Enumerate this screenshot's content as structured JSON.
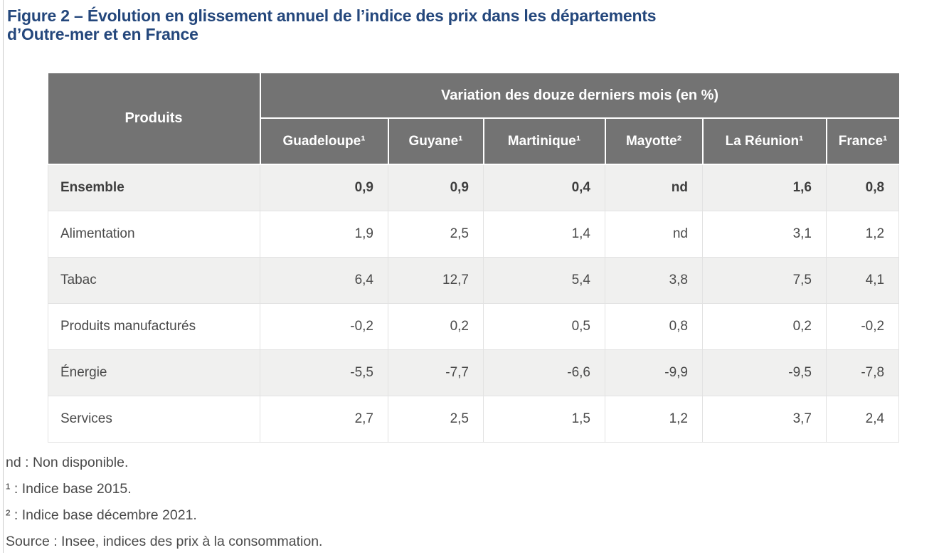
{
  "title": {
    "full": "Figure 2 – Évolution en glissement annuel de l’indice des prix dans les départements d’Outre-mer et en France",
    "line1": "Figure 2 – Évolution en glissement annuel de l’indice des prix dans les départements",
    "line2": "d’Outre-mer et en France"
  },
  "chart_data": {
    "type": "table",
    "title": "Figure 2 – Évolution en glissement annuel de l’indice des prix dans les départements d’Outre-mer et en France",
    "col1_header": "Produits",
    "group_header": "Variation des douze derniers mois (en %)",
    "columns": [
      "Guadeloupe¹",
      "Guyane¹",
      "Martinique¹",
      "Mayotte²",
      "La Réunion¹",
      "France¹"
    ],
    "rows": [
      {
        "label": "Ensemble",
        "bold": true,
        "values": [
          "0,9",
          "0,9",
          "0,4",
          "nd",
          "1,6",
          "0,8"
        ]
      },
      {
        "label": "Alimentation",
        "bold": false,
        "values": [
          "1,9",
          "2,5",
          "1,4",
          "nd",
          "3,1",
          "1,2"
        ]
      },
      {
        "label": "Tabac",
        "bold": false,
        "values": [
          "6,4",
          "12,7",
          "5,4",
          "3,8",
          "7,5",
          "4,1"
        ]
      },
      {
        "label": "Produits manufacturés",
        "bold": false,
        "values": [
          "-0,2",
          "0,2",
          "0,5",
          "0,8",
          "0,2",
          "-0,2"
        ]
      },
      {
        "label": "Énergie",
        "bold": false,
        "values": [
          "-5,5",
          "-7,7",
          "-6,6",
          "-9,9",
          "-9,5",
          "-7,8"
        ]
      },
      {
        "label": "Services",
        "bold": false,
        "values": [
          "2,7",
          "2,5",
          "1,5",
          "1,2",
          "3,7",
          "2,4"
        ]
      }
    ]
  },
  "notes": [
    "nd : Non disponible.",
    "¹ : Indice base 2015.",
    "² : Indice base décembre 2021.",
    "Source : Insee, indices des prix à la consommation."
  ],
  "colors": {
    "title_blue": "#24477C",
    "header_gray": "#737373",
    "row_alt_gray": "#F0F0EF",
    "border_light": "#E2E2E2",
    "text_dark": "#4A4A4A",
    "left_rule": "#CCCCCC"
  }
}
